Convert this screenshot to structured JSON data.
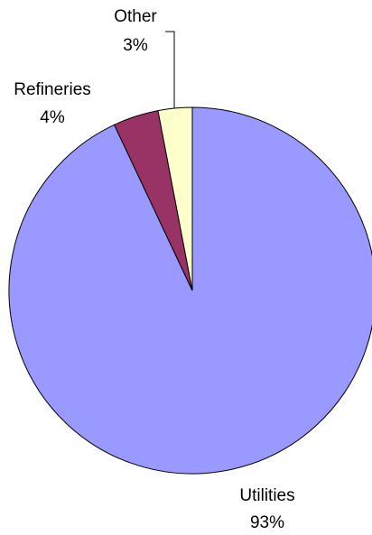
{
  "chart_data": {
    "type": "pie",
    "categories": [
      "Utilities",
      "Refineries",
      "Other"
    ],
    "values": [
      93,
      4,
      3
    ],
    "value_labels": [
      "93%",
      "4%",
      "3%"
    ],
    "colors": [
      "#9999ff",
      "#993366",
      "#ffffcc"
    ]
  }
}
